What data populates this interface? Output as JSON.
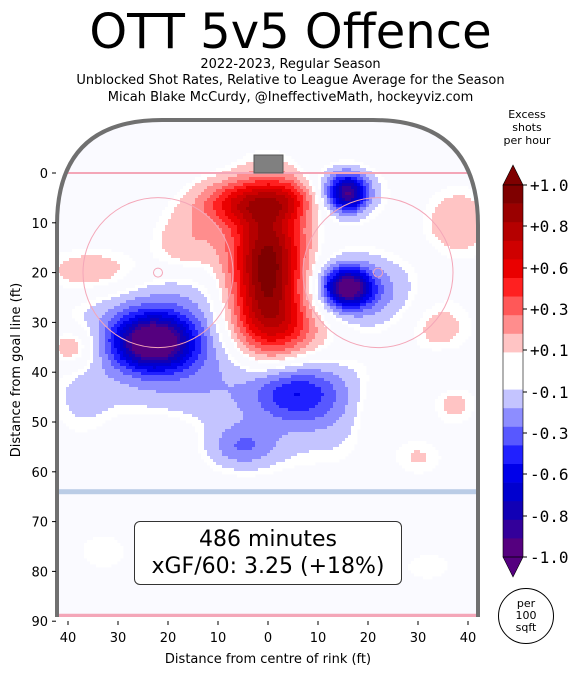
{
  "title": "OTT 5v5 Offence",
  "subtitle_lines": [
    "2022-2023, Regular Season",
    "Unblocked Shot Rates, Relative to League Average for the Season",
    "Micah Blake McCurdy, @IneffectiveMath, hockeyviz.com"
  ],
  "info_box": {
    "line1": "486 minutes",
    "line2": "xGF/60: 3.25 (+18%)"
  },
  "colorbar": {
    "title_lines": [
      "Excess",
      "shots",
      "per hour"
    ],
    "labels": [
      "+1.0",
      "+0.8",
      "+0.6",
      "+0.3",
      "+0.1",
      "-0.1",
      "-0.3",
      "-0.6",
      "-0.8",
      "-1.0"
    ],
    "colors": [
      "#7f0000",
      "#9a0000",
      "#b50000",
      "#cf0000",
      "#ea0000",
      "#ff2020",
      "#ff5858",
      "#ff8d8d",
      "#ffc4c4",
      "#ffffff",
      "#ffffff",
      "#c4c4ff",
      "#8d8dff",
      "#5858ff",
      "#2020ff",
      "#0000ea",
      "#0000cf",
      "#1100b5",
      "#33009a",
      "#55007f"
    ]
  },
  "unit_note": [
    "per",
    "100",
    "sqft"
  ],
  "chart_data": {
    "type": "heatmap",
    "title": "OTT 5v5 Offence",
    "xlabel": "Distance from centre of rink (ft)",
    "ylabel": "Distance from goal line (ft)",
    "x_ticks": [
      "40",
      "30",
      "20",
      "10",
      "0",
      "10",
      "20",
      "30",
      "40"
    ],
    "y_ticks": [
      "0",
      "10",
      "20",
      "30",
      "40",
      "50",
      "60",
      "70",
      "80",
      "90"
    ],
    "xlim": [
      -42.5,
      42.5
    ],
    "ylim": [
      0,
      90
    ],
    "zlim": [
      -1.0,
      1.0
    ],
    "blobs": [
      {
        "x": 0,
        "y": 19,
        "sx": 5.2,
        "sy": 10,
        "v": 1.0
      },
      {
        "x": -6,
        "y": 6,
        "sx": 6,
        "sy": 3.2,
        "v": 0.45
      },
      {
        "x": 5,
        "y": 5,
        "sx": 4.5,
        "sy": 3,
        "v": 0.35
      },
      {
        "x": 2,
        "y": 31,
        "sx": 9,
        "sy": 5,
        "v": 0.35
      },
      {
        "x": -16,
        "y": 14,
        "sx": 5,
        "sy": 4.5,
        "v": 0.2
      },
      {
        "x": -34,
        "y": 20,
        "sx": 8,
        "sy": 3.5,
        "v": 0.2
      },
      {
        "x": -39,
        "y": 35,
        "sx": 3.5,
        "sy": 3,
        "v": 0.25
      },
      {
        "x": 38,
        "y": 10,
        "sx": 5,
        "sy": 5,
        "v": 0.18
      },
      {
        "x": 34,
        "y": 31,
        "sx": 5,
        "sy": 5,
        "v": 0.15
      },
      {
        "x": 22,
        "y": 48,
        "sx": 4,
        "sy": 5,
        "v": 0.15
      },
      {
        "x": 37,
        "y": 46,
        "sx": 3.5,
        "sy": 3.5,
        "v": 0.15
      },
      {
        "x": -22,
        "y": 53,
        "sx": 7,
        "sy": 4,
        "v": 0.12
      },
      {
        "x": 30,
        "y": 57,
        "sx": 4,
        "sy": 3,
        "v": 0.12
      },
      {
        "x": -33,
        "y": 76,
        "sx": 4,
        "sy": 3,
        "v": 0.1
      },
      {
        "x": 0,
        "y": 79,
        "sx": 8,
        "sy": 3,
        "v": 0.08
      },
      {
        "x": 32,
        "y": 79,
        "sx": 5,
        "sy": 3,
        "v": 0.08
      },
      {
        "x": -23,
        "y": 34,
        "sx": 5,
        "sy": 3.5,
        "v": -0.9
      },
      {
        "x": -20,
        "y": 32,
        "sx": 12,
        "sy": 8,
        "v": -0.35
      },
      {
        "x": 16,
        "y": 4,
        "sx": 2.5,
        "sy": 2.5,
        "v": -0.7
      },
      {
        "x": 14,
        "y": 4,
        "sx": 6,
        "sy": 3.5,
        "v": -0.25
      },
      {
        "x": 16,
        "y": 23,
        "sx": 3,
        "sy": 2.5,
        "v": -0.8
      },
      {
        "x": 17,
        "y": 24,
        "sx": 8,
        "sy": 5,
        "v": -0.35
      },
      {
        "x": 5,
        "y": 44,
        "sx": 6,
        "sy": 4,
        "v": -0.35
      },
      {
        "x": -5,
        "y": 46,
        "sx": 20,
        "sy": 8,
        "v": -0.12
      },
      {
        "x": 13,
        "y": 47,
        "sx": 8,
        "sy": 7,
        "v": -0.12
      },
      {
        "x": -5,
        "y": 55,
        "sx": 5,
        "sy": 3,
        "v": -0.25
      },
      {
        "x": 35,
        "y": 40,
        "sx": 4,
        "sy": 3,
        "v": -0.1
      },
      {
        "x": -37,
        "y": 46,
        "sx": 4,
        "sy": 5,
        "v": -0.08
      }
    ]
  }
}
